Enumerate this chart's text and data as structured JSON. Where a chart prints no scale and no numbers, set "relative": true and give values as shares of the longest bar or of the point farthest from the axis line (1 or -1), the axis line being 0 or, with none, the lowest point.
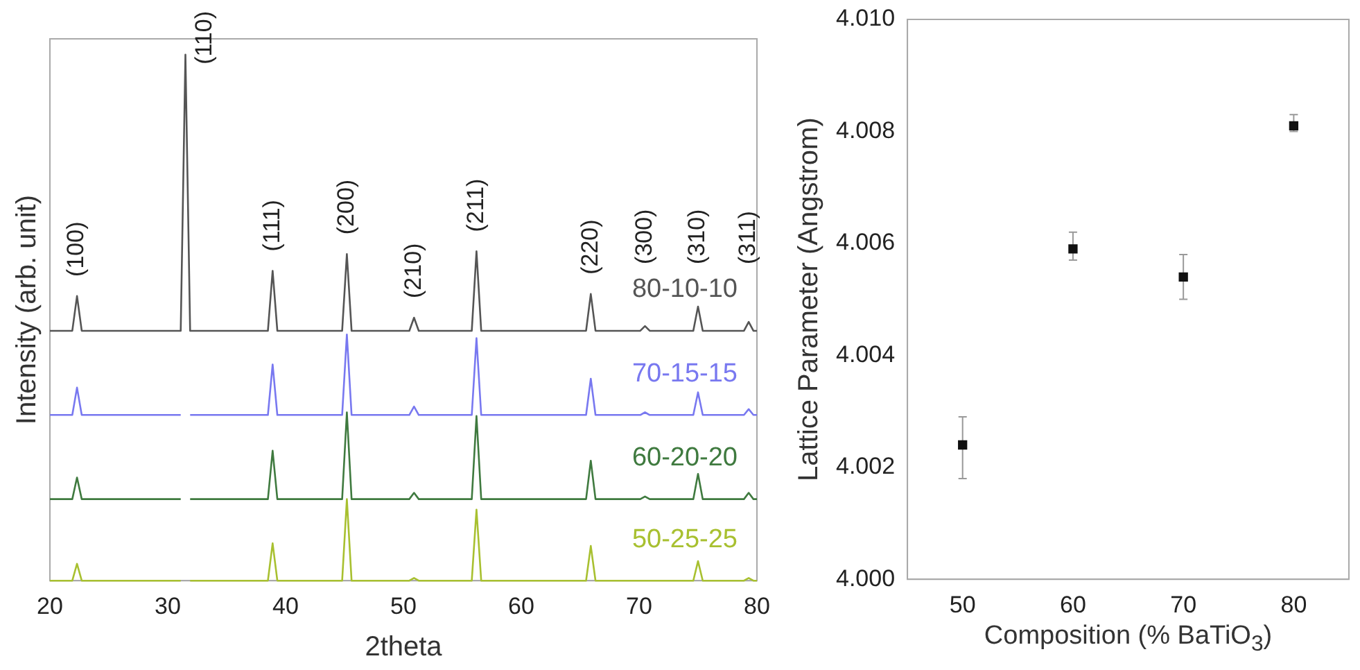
{
  "chart_data": [
    {
      "type": "line",
      "relative": true,
      "xlabel": "2theta",
      "ylabel": "Intensity (arb. unit)",
      "tick_labels": "x",
      "marker": "none",
      "line_style": "solid",
      "x": [
        20,
        21.9,
        22.3,
        22.7,
        31.1,
        31.5,
        31.9,
        38.5,
        38.9,
        39.3,
        44.8,
        45.2,
        45.6,
        50.5,
        50.9,
        51.3,
        55.8,
        56.2,
        56.6,
        65.5,
        65.9,
        66.3,
        70.1,
        70.5,
        70.9,
        74.6,
        75.0,
        75.4,
        78.9,
        79.3,
        79.7,
        80
      ],
      "xlim": [
        20,
        80
      ],
      "xticks": [
        20,
        30,
        40,
        50,
        60,
        70,
        80
      ],
      "series": [
        {
          "name": "80-10-10",
          "color": "#555555",
          "values": [
            0.475,
            0.475,
            0.541,
            0.475,
            0.475,
            1,
            0.475,
            0.475,
            0.589,
            0.475,
            0.475,
            0.621,
            0.475,
            0.475,
            0.5,
            0.475,
            0.475,
            0.626,
            0.475,
            0.475,
            0.545,
            0.475,
            0.475,
            0.484,
            0.475,
            0.475,
            0.521,
            0.475,
            0.475,
            0.492,
            0.475,
            0.475
          ]
        },
        {
          "name": "70-15-15",
          "color": "#7878f0",
          "values": [
            0.315,
            0.315,
            0.367,
            0.315,
            0.315,
            null,
            0.315,
            0.315,
            0.411,
            0.315,
            0.315,
            0.468,
            0.315,
            0.315,
            0.331,
            0.315,
            0.315,
            0.461,
            0.315,
            0.315,
            0.384,
            0.315,
            0.315,
            0.32,
            0.315,
            0.315,
            0.358,
            0.315,
            0.315,
            0.326,
            0.315,
            0.315
          ]
        },
        {
          "name": "60-20-20",
          "color": "#3f7a3f",
          "values": [
            0.155,
            0.155,
            0.196,
            0.155,
            0.155,
            null,
            0.155,
            0.155,
            0.247,
            0.155,
            0.155,
            0.32,
            0.155,
            0.155,
            0.167,
            0.155,
            0.155,
            0.313,
            0.155,
            0.155,
            0.228,
            0.155,
            0.155,
            0.16,
            0.155,
            0.155,
            0.203,
            0.155,
            0.155,
            0.167,
            0.155,
            0.155
          ]
        },
        {
          "name": "50-25-25",
          "color": "#a8c030",
          "values": [
            0,
            0,
            0.032,
            0,
            0,
            null,
            0,
            0,
            0.071,
            0,
            0,
            0.155,
            0,
            0,
            0.005,
            0,
            0,
            0.135,
            0,
            0,
            0.066,
            0,
            0,
            0,
            0,
            0,
            0.037,
            0,
            0,
            0.005,
            0,
            0
          ]
        }
      ],
      "annotations": [
        {
          "text": "(100)",
          "x": 22.3,
          "y": 0.541
        },
        {
          "text": "(110)",
          "x": 31.5,
          "y": 1
        },
        {
          "text": "(111)",
          "x": 38.9,
          "y": 0.589
        },
        {
          "text": "(200)",
          "x": 45.2,
          "y": 0.621
        },
        {
          "text": "(210)",
          "x": 50.9,
          "y": 0.5
        },
        {
          "text": "(211)",
          "x": 56.2,
          "y": 0.626
        },
        {
          "text": "(220)",
          "x": 65.9,
          "y": 0.545
        },
        {
          "text": "(300)",
          "x": 70.5,
          "y": 0.484
        },
        {
          "text": "(310)",
          "x": 75.0,
          "y": 0.521
        },
        {
          "text": "(311)",
          "x": 79.3,
          "y": 0.492
        }
      ]
    },
    {
      "type": "scatter",
      "xlabel": "Composition (% BaTiO$_{3}$)",
      "ylabel": "Lattice Parameter (Angstrom)",
      "marker": "square",
      "color": "#111111",
      "x": [
        50,
        60,
        70,
        80
      ],
      "values": [
        4.0024,
        4.0059,
        4.0054,
        4.0081
      ],
      "errors": [
        [
          4.0018,
          4.0029
        ],
        [
          4.0057,
          4.0062
        ],
        [
          4.005,
          4.0058
        ],
        [
          4.008,
          4.0083
        ]
      ],
      "xlim": [
        45,
        85
      ],
      "xticks": [
        50,
        60,
        70,
        80
      ],
      "ylim": [
        4.0,
        4.01
      ],
      "yticks": [
        {
          "value": 4.0,
          "label": "4.000"
        },
        {
          "value": 4.002,
          "label": "4.002"
        },
        {
          "value": 4.004,
          "label": "4.004"
        },
        {
          "value": 4.006,
          "label": "4.006"
        },
        {
          "value": 4.008,
          "label": "4.008"
        },
        {
          "value": 4.01,
          "label": "4.010"
        }
      ]
    }
  ]
}
